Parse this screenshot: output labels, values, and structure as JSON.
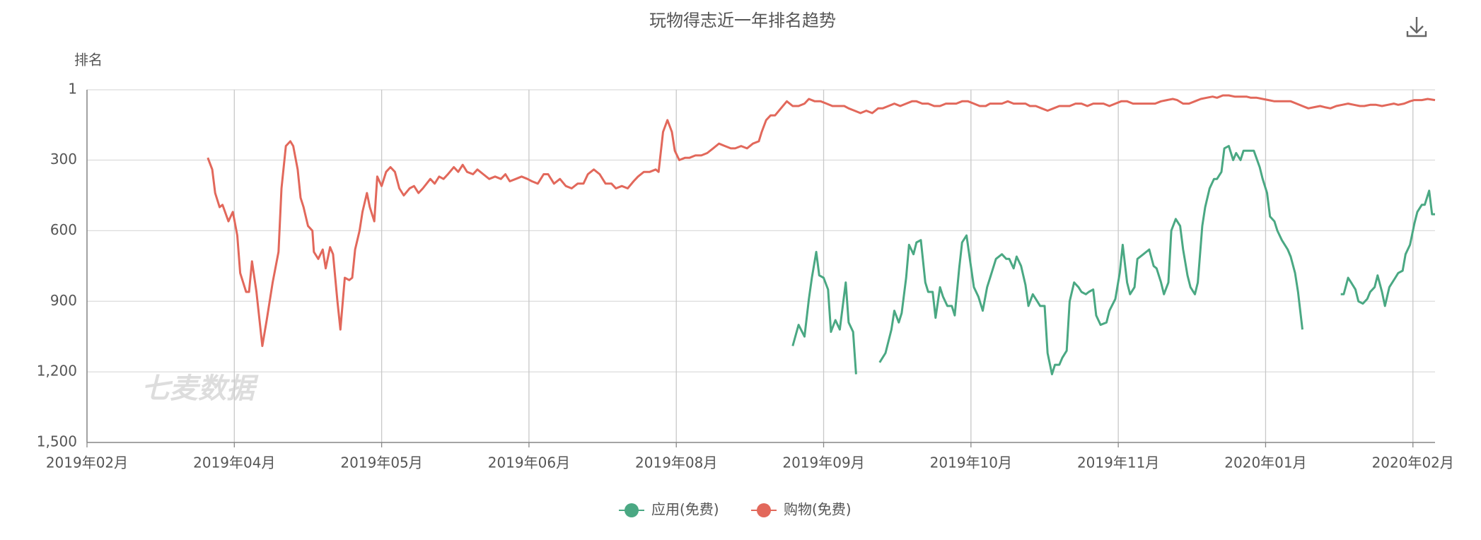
{
  "chart_data": {
    "type": "line",
    "title": "玩物得志近一年排名趋势",
    "y_label": "排名",
    "watermark": "七麦数据",
    "xlim": [
      0,
      91.5
    ],
    "xticks": [
      {
        "value": 0,
        "label": "2019年02月"
      },
      {
        "value": 10,
        "label": "2019年04月"
      },
      {
        "value": 20,
        "label": "2019年05月"
      },
      {
        "value": 30,
        "label": "2019年06月"
      },
      {
        "value": 40,
        "label": "2019年08月"
      },
      {
        "value": 50,
        "label": "2019年09月"
      },
      {
        "value": 60,
        "label": "2019年10月"
      },
      {
        "value": 70,
        "label": "2019年11月"
      },
      {
        "value": 80,
        "label": "2020年01月"
      },
      {
        "value": 90,
        "label": "2020年02月"
      }
    ],
    "ylim": [
      1,
      1500
    ],
    "y_inverted": true,
    "yticks": [
      1,
      300,
      600,
      900,
      {
        "value": 1200,
        "label": "1,200"
      },
      {
        "value": 1500,
        "label": "1,500"
      }
    ],
    "grid": true,
    "series": [
      {
        "name": "应用(免费)",
        "color": "#4aa883",
        "x": [
          47.9,
          48.3,
          48.7,
          49.0,
          49.2,
          49.5,
          49.7,
          50.0,
          50.3,
          50.5,
          50.8,
          51.1,
          51.5,
          51.7,
          52.0,
          52.2,
          53.0,
          53.8,
          54.2,
          54.6,
          54.8,
          55.1,
          55.3,
          55.6,
          55.8,
          56.1,
          56.3,
          56.6,
          56.9,
          57.1,
          57.4,
          57.6,
          57.9,
          58.1,
          58.4,
          58.7,
          58.9,
          59.2,
          59.4,
          59.7,
          59.9,
          60.2,
          60.5,
          60.8,
          61.1,
          61.3,
          61.7,
          62.1,
          62.4,
          62.6,
          62.9,
          63.1,
          63.4,
          63.7,
          63.9,
          64.2,
          64.4,
          64.7,
          65.0,
          65.2,
          65.5,
          65.7,
          66.0,
          66.2,
          66.5,
          66.7,
          67.0,
          67.3,
          67.5,
          67.8,
          68.0,
          68.3,
          68.5,
          68.8,
          69.2,
          69.4,
          69.8,
          70.1,
          70.3,
          70.6,
          70.8,
          71.1,
          71.3,
          71.7,
          72.1,
          72.4,
          72.6,
          72.9,
          73.1,
          73.4,
          73.6,
          73.9,
          74.2,
          74.4,
          74.7,
          74.9,
          75.2,
          75.4,
          75.7,
          75.9,
          76.2,
          76.5,
          76.7,
          77.0,
          77.2,
          77.5,
          77.8,
          78.0,
          78.3,
          78.5,
          78.8,
          79.2,
          79.6,
          79.8,
          80.1,
          80.3,
          80.6,
          80.8,
          81.1,
          81.5,
          81.7,
          82.0,
          82.2,
          82.5,
          83.8,
          85.1,
          85.3,
          85.6,
          85.8,
          86.1,
          86.3,
          86.6,
          86.9,
          87.1,
          87.4,
          87.6,
          87.9,
          88.1,
          88.4,
          88.8,
          89.0,
          89.3,
          89.5,
          89.8,
          90.1,
          90.3,
          90.6,
          90.8,
          91.1,
          91.3,
          91.5
        ],
        "values": [
          1090,
          1000,
          1050,
          890,
          800,
          690,
          790,
          800,
          850,
          1030,
          980,
          1020,
          820,
          990,
          1030,
          1210,
          null,
          1160,
          1120,
          1020,
          940,
          990,
          950,
          800,
          660,
          700,
          650,
          640,
          820,
          860,
          860,
          970,
          840,
          880,
          920,
          920,
          960,
          760,
          650,
          620,
          710,
          840,
          880,
          940,
          840,
          800,
          720,
          700,
          720,
          720,
          760,
          710,
          750,
          830,
          920,
          870,
          890,
          920,
          920,
          1120,
          1210,
          1170,
          1170,
          1140,
          1110,
          900,
          820,
          840,
          860,
          870,
          860,
          850,
          960,
          1000,
          990,
          940,
          890,
          780,
          660,
          820,
          870,
          840,
          720,
          700,
          680,
          750,
          760,
          820,
          870,
          820,
          600,
          550,
          580,
          680,
          790,
          840,
          870,
          820,
          580,
          500,
          420,
          380,
          380,
          350,
          250,
          240,
          300,
          270,
          300,
          260,
          260,
          260,
          330,
          380,
          440,
          540,
          560,
          600,
          640,
          680,
          710,
          780,
          860,
          1020,
          null,
          870,
          870,
          800,
          820,
          850,
          900,
          910,
          890,
          860,
          840,
          790,
          860,
          920,
          840,
          800,
          780,
          770,
          700,
          660,
          570,
          520,
          490,
          490,
          430,
          530,
          530
        ]
      },
      {
        "name": "购物(免费)",
        "color": "#e2685b",
        "x": [
          8.2,
          8.5,
          8.7,
          9.0,
          9.2,
          9.6,
          9.9,
          10.2,
          10.4,
          10.8,
          11.0,
          11.2,
          11.5,
          11.9,
          12.2,
          12.6,
          13.0,
          13.2,
          13.5,
          13.8,
          14.0,
          14.3,
          14.5,
          14.7,
          15.0,
          15.3,
          15.4,
          15.7,
          16.0,
          16.2,
          16.5,
          16.7,
          17.0,
          17.2,
          17.5,
          17.8,
          18.0,
          18.2,
          18.5,
          18.7,
          19.0,
          19.2,
          19.5,
          19.7,
          20.0,
          20.3,
          20.6,
          20.9,
          21.2,
          21.5,
          21.9,
          22.2,
          22.5,
          22.8,
          23.3,
          23.6,
          23.9,
          24.2,
          24.5,
          24.9,
          25.2,
          25.5,
          25.8,
          26.2,
          26.5,
          26.9,
          27.3,
          27.7,
          28.1,
          28.4,
          28.7,
          29.1,
          29.5,
          29.9,
          30.2,
          30.6,
          31.0,
          31.3,
          31.7,
          32.1,
          32.5,
          32.9,
          33.3,
          33.7,
          34.0,
          34.4,
          34.8,
          35.2,
          35.6,
          35.9,
          36.3,
          36.7,
          37.1,
          37.4,
          37.8,
          38.2,
          38.6,
          38.8,
          39.1,
          39.4,
          39.7,
          39.9,
          40.2,
          40.6,
          40.9,
          41.3,
          41.7,
          42.1,
          42.5,
          42.9,
          43.3,
          43.7,
          44.0,
          44.4,
          44.8,
          45.2,
          45.6,
          45.8,
          46.1,
          46.4,
          46.7,
          47.1,
          47.5,
          47.9,
          48.3,
          48.7,
          49.0,
          49.4,
          49.8,
          50.2,
          50.6,
          51.0,
          51.4,
          51.7,
          52.1,
          52.5,
          52.9,
          53.3,
          53.7,
          54.0,
          54.4,
          54.8,
          55.2,
          55.6,
          56.0,
          56.3,
          56.7,
          57.1,
          57.5,
          57.9,
          58.3,
          58.7,
          59.0,
          59.4,
          59.8,
          60.2,
          60.6,
          61.0,
          61.3,
          61.7,
          62.1,
          62.5,
          62.9,
          63.3,
          63.7,
          64.0,
          64.4,
          64.8,
          65.2,
          65.6,
          66.0,
          66.3,
          66.7,
          67.1,
          67.5,
          67.9,
          68.3,
          68.7,
          69.0,
          69.4,
          69.8,
          70.2,
          70.6,
          71.0,
          71.3,
          71.7,
          72.1,
          72.5,
          72.9,
          73.3,
          73.7,
          74.0,
          74.4,
          74.8,
          75.2,
          75.6,
          76.0,
          76.4,
          76.7,
          77.1,
          77.5,
          77.9,
          78.3,
          78.7,
          79.0,
          79.4,
          79.8,
          80.2,
          80.6,
          81.0,
          81.4,
          81.7,
          82.1,
          82.5,
          82.9,
          83.3,
          83.7,
          84.0,
          84.4,
          84.8,
          85.2,
          85.6,
          86.0,
          86.4,
          86.7,
          87.1,
          87.5,
          87.9,
          88.3,
          88.7,
          89.0,
          89.4,
          89.8,
          90.1,
          90.6,
          91.0,
          91.5
        ],
        "values": [
          290,
          340,
          440,
          500,
          490,
          560,
          520,
          620,
          780,
          860,
          860,
          730,
          860,
          1090,
          980,
          820,
          690,
          420,
          240,
          220,
          240,
          340,
          460,
          500,
          580,
          600,
          690,
          720,
          680,
          760,
          670,
          700,
          900,
          1020,
          800,
          810,
          800,
          680,
          600,
          520,
          440,
          500,
          560,
          370,
          410,
          350,
          330,
          350,
          420,
          450,
          420,
          410,
          440,
          420,
          380,
          400,
          370,
          380,
          360,
          330,
          350,
          320,
          350,
          360,
          340,
          360,
          380,
          370,
          380,
          360,
          390,
          380,
          370,
          380,
          390,
          400,
          360,
          360,
          400,
          380,
          410,
          420,
          400,
          400,
          360,
          340,
          360,
          400,
          400,
          420,
          410,
          420,
          390,
          370,
          350,
          350,
          340,
          350,
          180,
          130,
          180,
          260,
          300,
          290,
          290,
          280,
          280,
          270,
          250,
          230,
          240,
          250,
          250,
          240,
          250,
          230,
          220,
          180,
          130,
          110,
          110,
          80,
          50,
          70,
          70,
          60,
          40,
          50,
          50,
          60,
          70,
          70,
          70,
          80,
          90,
          100,
          90,
          100,
          80,
          80,
          70,
          60,
          70,
          60,
          50,
          50,
          60,
          60,
          70,
          70,
          60,
          60,
          60,
          50,
          50,
          60,
          70,
          70,
          60,
          60,
          60,
          50,
          60,
          60,
          60,
          70,
          70,
          80,
          90,
          80,
          70,
          70,
          70,
          60,
          60,
          70,
          60,
          60,
          60,
          70,
          60,
          50,
          50,
          60,
          60,
          60,
          60,
          60,
          50,
          45,
          40,
          45,
          60,
          60,
          50,
          40,
          35,
          30,
          35,
          25,
          25,
          30,
          30,
          30,
          35,
          35,
          40,
          45,
          50,
          50,
          50,
          50,
          60,
          70,
          80,
          75,
          70,
          75,
          80,
          70,
          65,
          60,
          65,
          70,
          70,
          65,
          65,
          70,
          65,
          60,
          65,
          60,
          50,
          45,
          45,
          40,
          45
        ]
      }
    ]
  }
}
